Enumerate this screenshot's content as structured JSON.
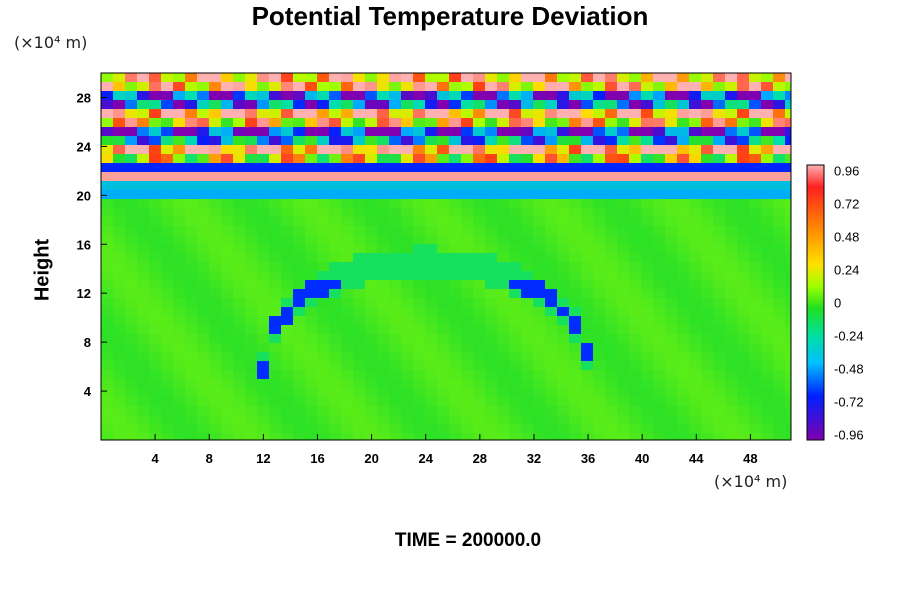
{
  "chart_data": {
    "type": "heatmap",
    "title": "Potential Temperature Deviation",
    "ylabel": "Height",
    "x_unit_label": "(×10⁴ m)",
    "y_unit_label": "(×10⁴ m)",
    "footer": "TIME = 200000.0",
    "xlim": [
      0,
      51
    ],
    "ylim": [
      0,
      30
    ],
    "x_ticks": [
      4,
      8,
      12,
      16,
      20,
      24,
      28,
      32,
      36,
      40,
      44,
      48
    ],
    "y_ticks": [
      4,
      8,
      12,
      16,
      20,
      24,
      28
    ],
    "colorbar": {
      "range": [
        -0.96,
        0.96
      ],
      "tick_labels": [
        "0.96",
        "0.72",
        "0.48",
        "0.24",
        "0",
        "-0.24",
        "-0.48",
        "-0.72",
        "-0.96"
      ],
      "tick_values": [
        0.96,
        0.72,
        0.48,
        0.24,
        0,
        -0.24,
        -0.48,
        -0.72,
        -0.96
      ]
    },
    "features": [
      {
        "name": "background",
        "value": 0.05
      },
      {
        "name": "oscillating layers",
        "y_range": [
          19.5,
          30
        ],
        "amplitude": 0.96
      },
      {
        "name": "arch outline",
        "center_x": 24,
        "peak_y": 14.5,
        "base_y": 6,
        "value": -0.7
      }
    ]
  }
}
